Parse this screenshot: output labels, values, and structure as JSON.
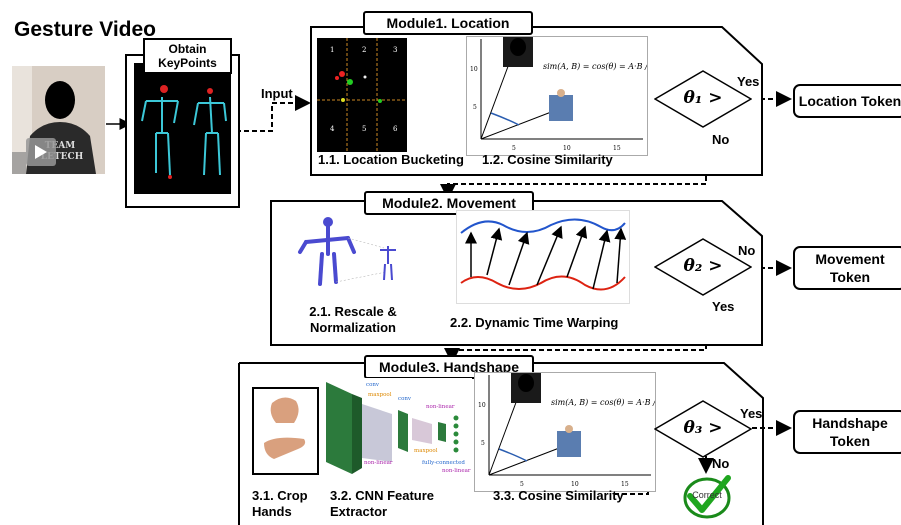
{
  "title": "Gesture Video",
  "keypoints_label": "Obtain KeyPoints",
  "input_label": "Input",
  "module1": {
    "title": "Module1. Location",
    "step1": "1.1. Location Bucketing",
    "step2": "1.2. Cosine Similarity",
    "grid_cells": [
      "1",
      "2",
      "3",
      "4",
      "5",
      "6"
    ],
    "theta": "θ₁ >",
    "yes": "Yes",
    "no": "No",
    "token": "Location Token"
  },
  "module2": {
    "title": "Module2. Movement",
    "step1": "2.1. Rescale & Normalization",
    "step2": "2.2. Dynamic Time Warping",
    "theta": "θ₂ >",
    "yes": "Yes",
    "no": "No",
    "token": "Movement Token"
  },
  "module3": {
    "title": "Module3. Handshape",
    "step1": "3.1. Crop Hands",
    "step2": "3.2. CNN Feature Extractor",
    "step3": "3.3. Cosine Similarity",
    "cnn_labels": [
      "conv",
      "maxpool",
      "conv",
      "non-linear",
      "maxpool",
      "non-linear",
      "fully-connected",
      "non-linear"
    ],
    "theta": "θ₃ >",
    "yes": "Yes",
    "no": "No",
    "token": "Handshape Token",
    "correct": "Correct"
  },
  "cosine_formula": "sim(A, B) = cos(θ) = A·B / ‖A‖‖B‖",
  "cosine_axis_ticks": [
    "5",
    "10",
    "15"
  ],
  "cosine_y_ticks": [
    "5",
    "10"
  ]
}
